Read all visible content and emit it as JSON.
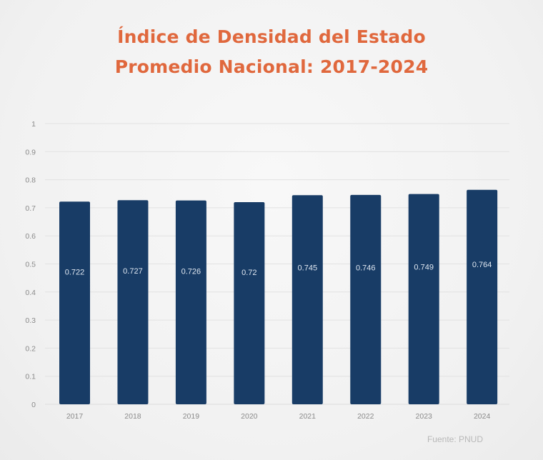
{
  "chart_data": {
    "type": "bar",
    "title": "Índice de Densidad del Estado",
    "subtitle": "Promedio Nacional: 2017-2024",
    "xlabel": "",
    "ylabel": "",
    "categories": [
      "2017",
      "2018",
      "2019",
      "2020",
      "2021",
      "2022",
      "2023",
      "2024"
    ],
    "values": [
      0.722,
      0.727,
      0.726,
      0.72,
      0.745,
      0.746,
      0.749,
      0.764
    ],
    "data_labels": [
      "0.722",
      "0.727",
      "0.726",
      "0.72",
      "0.745",
      "0.746",
      "0.749",
      "0.764"
    ],
    "ylim": [
      0,
      1
    ],
    "yticks": [
      0,
      0.1,
      0.2,
      0.3,
      0.4,
      0.5,
      0.6,
      0.7,
      0.8,
      0.9,
      1
    ],
    "ytick_labels": [
      "0",
      "0.1",
      "0.2",
      "0.3",
      "0.4",
      "0.5",
      "0.6",
      "0.7",
      "0.8",
      "0.9",
      "1"
    ],
    "grid": true,
    "legend": "none",
    "source": "Fuente: PNUD",
    "colors": {
      "bar": "#183c66",
      "title": "#e0683d",
      "grid": "#e2e2e2",
      "tick_label": "#8a8a8a",
      "data_label": "#dfe7f1",
      "source": "#b9b9b9"
    }
  }
}
